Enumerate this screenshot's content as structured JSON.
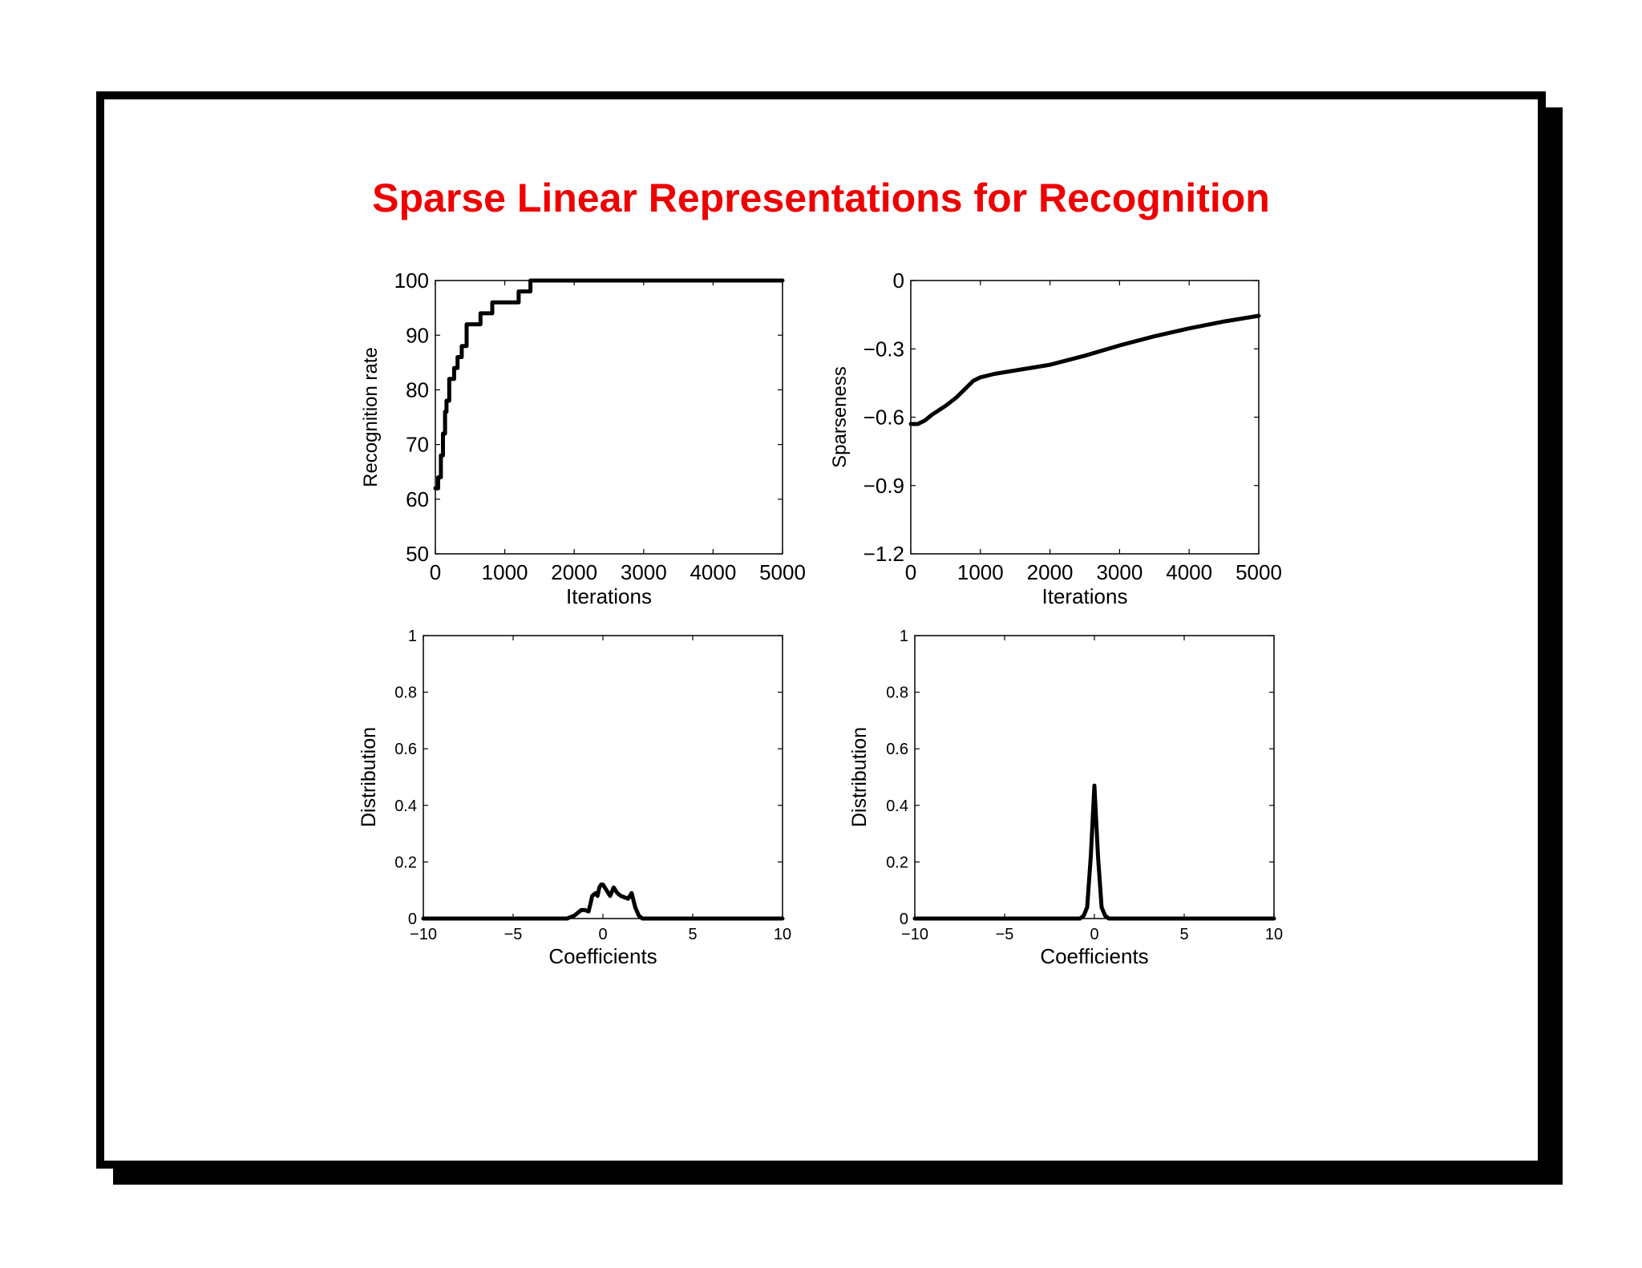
{
  "slide": {
    "title": "Sparse Linear Representations for Recognition"
  },
  "chart_data": [
    {
      "type": "line",
      "xlabel": "Iterations",
      "ylabel": "Recognition rate",
      "xlim": [
        0,
        5000
      ],
      "ylim": [
        50,
        100
      ],
      "xticks": [
        "0",
        "1000",
        "2000",
        "3000",
        "4000",
        "5000"
      ],
      "yticks": [
        "50",
        "60",
        "70",
        "80",
        "90",
        "100"
      ],
      "grid": false,
      "series": [
        {
          "values": [
            [
              0,
              62
            ],
            [
              40,
              62
            ],
            [
              40,
              64
            ],
            [
              80,
              64
            ],
            [
              80,
              68
            ],
            [
              110,
              68
            ],
            [
              110,
              72
            ],
            [
              140,
              72
            ],
            [
              140,
              76
            ],
            [
              160,
              76
            ],
            [
              160,
              78
            ],
            [
              200,
              78
            ],
            [
              200,
              82
            ],
            [
              270,
              82
            ],
            [
              270,
              84
            ],
            [
              320,
              84
            ],
            [
              320,
              86
            ],
            [
              380,
              86
            ],
            [
              380,
              88
            ],
            [
              450,
              88
            ],
            [
              450,
              92
            ],
            [
              650,
              92
            ],
            [
              650,
              94
            ],
            [
              820,
              94
            ],
            [
              820,
              96
            ],
            [
              1200,
              96
            ],
            [
              1200,
              98
            ],
            [
              1370,
              98
            ],
            [
              1370,
              100
            ],
            [
              5000,
              100
            ]
          ]
        }
      ]
    },
    {
      "type": "line",
      "xlabel": "Iterations",
      "ylabel": "Sparseness",
      "xlim": [
        0,
        5000
      ],
      "ylim": [
        -1.2,
        0
      ],
      "xticks": [
        "0",
        "1000",
        "2000",
        "3000",
        "4000",
        "5000"
      ],
      "yticks": [
        "−1.2",
        "−0.9",
        "−0.6",
        "−0.3",
        "0"
      ],
      "grid": false,
      "series": [
        {
          "values": [
            [
              0,
              -0.63
            ],
            [
              100,
              -0.63
            ],
            [
              200,
              -0.615
            ],
            [
              300,
              -0.59
            ],
            [
              500,
              -0.55
            ],
            [
              650,
              -0.515
            ],
            [
              800,
              -0.47
            ],
            [
              900,
              -0.44
            ],
            [
              1000,
              -0.425
            ],
            [
              1200,
              -0.41
            ],
            [
              1500,
              -0.395
            ],
            [
              2000,
              -0.37
            ],
            [
              2500,
              -0.33
            ],
            [
              3000,
              -0.285
            ],
            [
              3500,
              -0.245
            ],
            [
              4000,
              -0.21
            ],
            [
              4500,
              -0.18
            ],
            [
              5000,
              -0.155
            ]
          ]
        }
      ]
    },
    {
      "type": "line",
      "xlabel": "Coefficients",
      "ylabel": "Distribution",
      "xlim": [
        -10,
        10
      ],
      "ylim": [
        0,
        1
      ],
      "xticks": [
        "−10",
        "−5",
        "0",
        "5",
        "10"
      ],
      "yticks": [
        "0",
        "0.2",
        "0.4",
        "0.6",
        "0.8",
        "1"
      ],
      "grid": false,
      "series": [
        {
          "values": [
            [
              -10,
              0
            ],
            [
              -2.0,
              0
            ],
            [
              -1.8,
              0.005
            ],
            [
              -1.6,
              0.01
            ],
            [
              -1.4,
              0.02
            ],
            [
              -1.2,
              0.03
            ],
            [
              -1.0,
              0.03
            ],
            [
              -0.8,
              0.025
            ],
            [
              -0.7,
              0.05
            ],
            [
              -0.6,
              0.08
            ],
            [
              -0.4,
              0.09
            ],
            [
              -0.3,
              0.08
            ],
            [
              -0.2,
              0.11
            ],
            [
              -0.1,
              0.12
            ],
            [
              0.0,
              0.12
            ],
            [
              0.2,
              0.1
            ],
            [
              0.4,
              0.08
            ],
            [
              0.6,
              0.11
            ],
            [
              0.8,
              0.09
            ],
            [
              1.0,
              0.08
            ],
            [
              1.2,
              0.075
            ],
            [
              1.4,
              0.07
            ],
            [
              1.6,
              0.09
            ],
            [
              1.8,
              0.04
            ],
            [
              2.0,
              0.01
            ],
            [
              2.2,
              0
            ],
            [
              10,
              0
            ]
          ]
        }
      ]
    },
    {
      "type": "line",
      "xlabel": "Coefficients",
      "ylabel": "Distribution",
      "xlim": [
        -10,
        10
      ],
      "ylim": [
        0,
        1
      ],
      "xticks": [
        "−10",
        "−5",
        "0",
        "5",
        "10"
      ],
      "yticks": [
        "0",
        "0.2",
        "0.4",
        "0.6",
        "0.8",
        "1"
      ],
      "grid": false,
      "series": [
        {
          "values": [
            [
              -10,
              0
            ],
            [
              -0.8,
              0
            ],
            [
              -0.6,
              0.01
            ],
            [
              -0.4,
              0.04
            ],
            [
              -0.2,
              0.22
            ],
            [
              0.0,
              0.47
            ],
            [
              0.2,
              0.22
            ],
            [
              0.4,
              0.04
            ],
            [
              0.6,
              0.01
            ],
            [
              0.8,
              0
            ],
            [
              10,
              0
            ]
          ]
        }
      ]
    }
  ]
}
